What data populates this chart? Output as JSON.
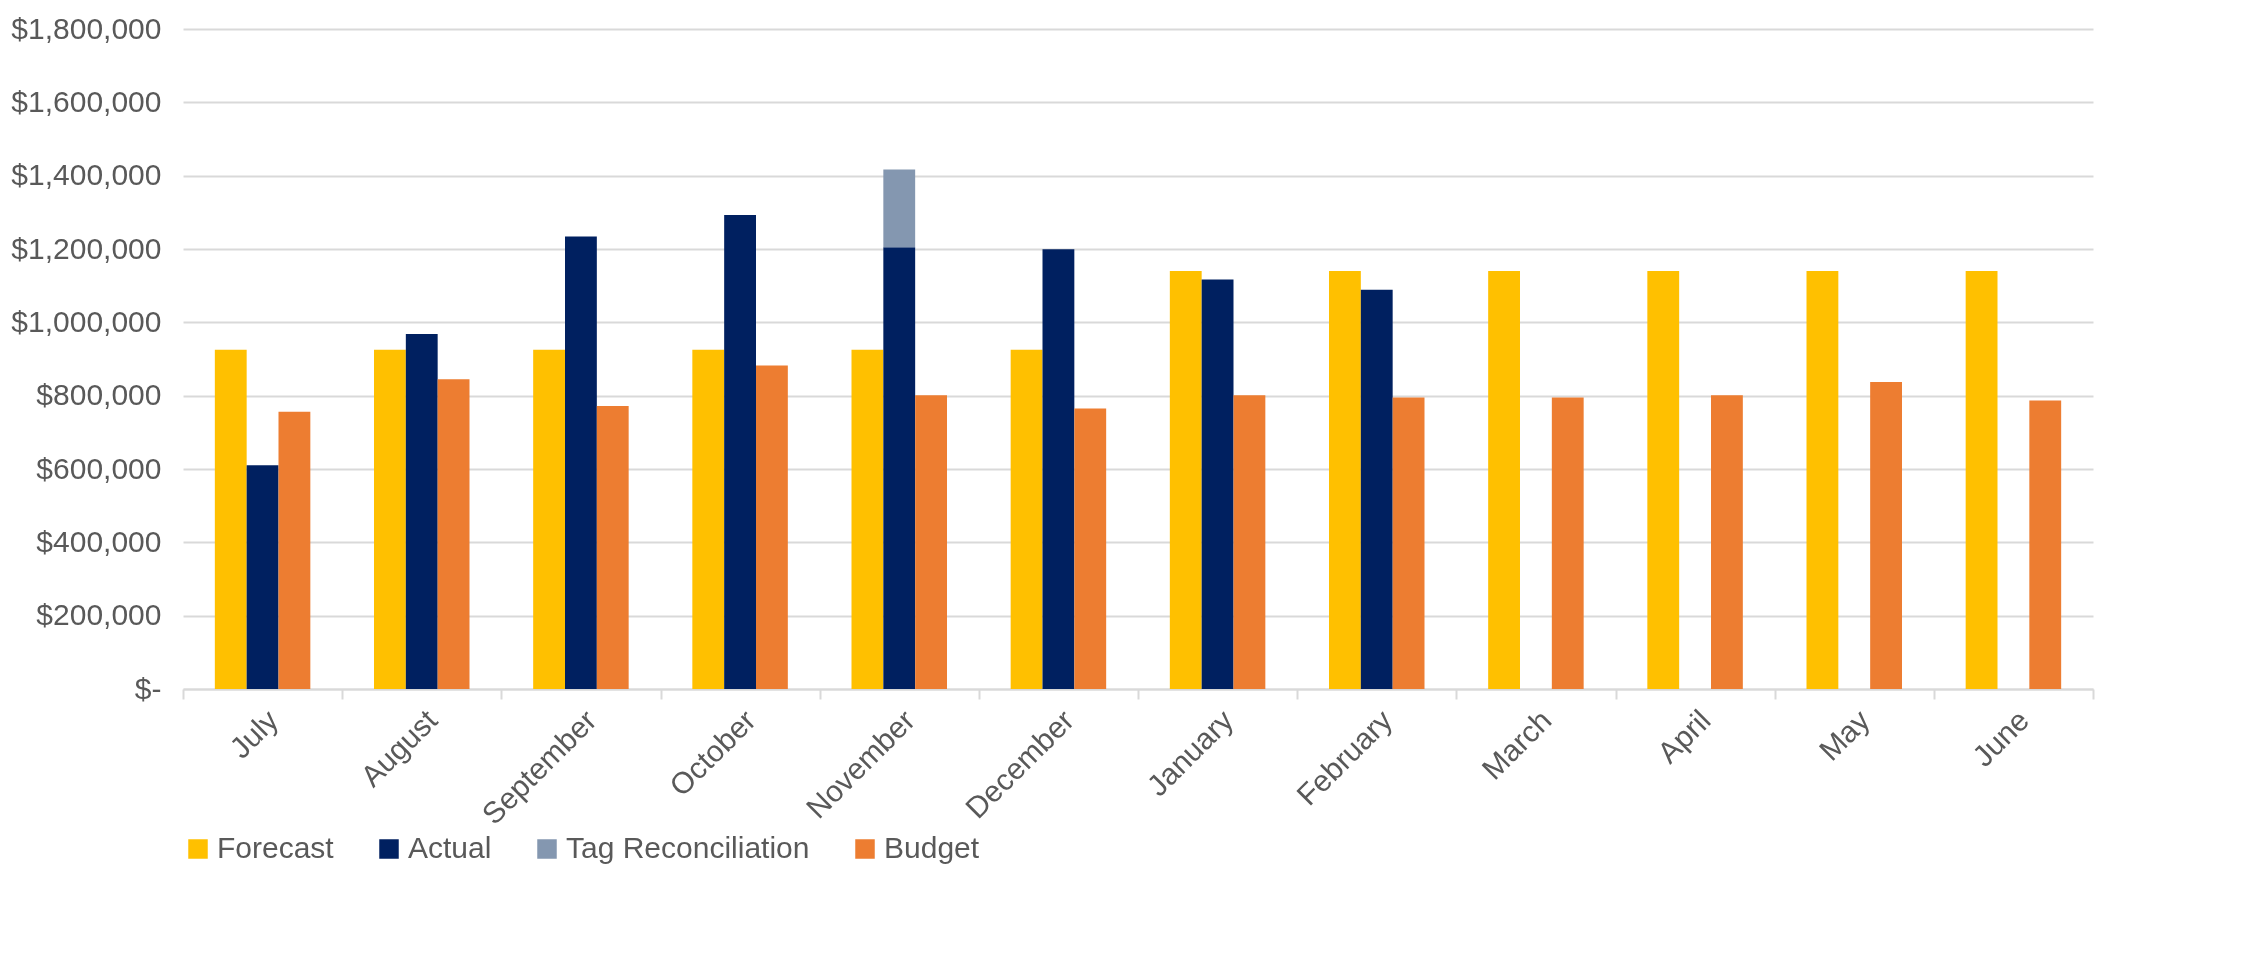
{
  "chart_data": {
    "type": "bar",
    "categories": [
      "July",
      "August",
      "September",
      "October",
      "November",
      "December",
      "January",
      "February",
      "March",
      "April",
      "May",
      "June"
    ],
    "series": [
      {
        "name": "Forecast",
        "color": "#ffc000",
        "values": [
          925000,
          925000,
          925000,
          925000,
          925000,
          925000,
          1140000,
          1140000,
          1140000,
          1140000,
          1140000,
          1140000
        ]
      },
      {
        "name": "Actual",
        "color": "#002060",
        "values": [
          610000,
          968000,
          1234000,
          1293000,
          1205000,
          1199000,
          1117000,
          1089000,
          null,
          null,
          null,
          null
        ]
      },
      {
        "name": "Tag Reconciliation",
        "color": "#8497b0",
        "base": [
          null,
          null,
          null,
          null,
          1205000,
          null,
          null,
          null,
          null,
          null,
          null,
          null
        ],
        "values": [
          null,
          null,
          null,
          null,
          212000,
          null,
          null,
          null,
          null,
          null,
          null,
          null
        ]
      },
      {
        "name": "Budget",
        "color": "#ed7d31",
        "values": [
          756000,
          845000,
          772000,
          882000,
          801000,
          765000,
          801000,
          795000,
          795000,
          801000,
          837000,
          787000
        ]
      }
    ],
    "ylim": [
      0,
      1800000
    ],
    "yticks": [
      {
        "value": 0,
        "label": "$-"
      },
      {
        "value": 200000,
        "label": "$200,000"
      },
      {
        "value": 400000,
        "label": "$400,000"
      },
      {
        "value": 600000,
        "label": "$600,000"
      },
      {
        "value": 800000,
        "label": "$800,000"
      },
      {
        "value": 1000000,
        "label": "$1,000,000"
      },
      {
        "value": 1200000,
        "label": "$1,200,000"
      },
      {
        "value": 1400000,
        "label": "$1,400,000"
      },
      {
        "value": 1600000,
        "label": "$1,600,000"
      },
      {
        "value": 1800000,
        "label": "$1,800,000"
      }
    ],
    "grid": "y",
    "legend": "bottom"
  }
}
